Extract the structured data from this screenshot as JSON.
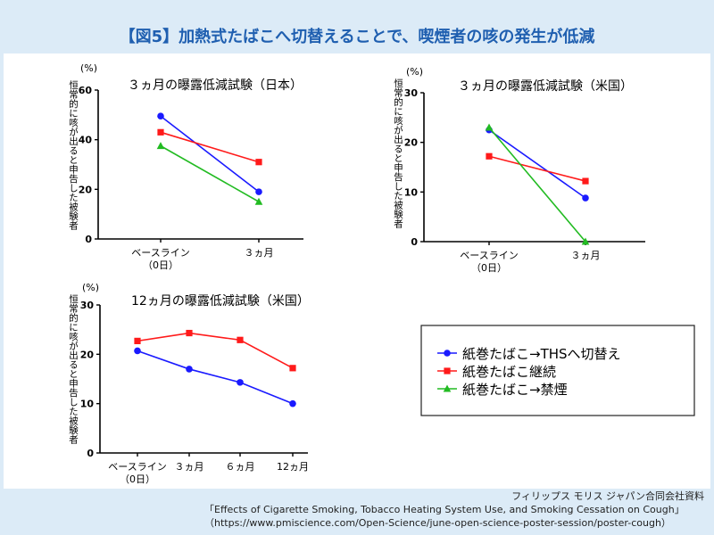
{
  "title": "【図5】加熱式たばこへ切替えることで、喫煙者の咳の発生が低減",
  "legend": [
    {
      "label": "紙巻たばこ→THSへ切替え",
      "color": "#1a1aff",
      "marker": "circle"
    },
    {
      "label": "紙巻たばこ継続",
      "color": "#ff1a1a",
      "marker": "square"
    },
    {
      "label": "紙巻たばこ→禁煙",
      "color": "#22bb22",
      "marker": "triangle"
    }
  ],
  "footer": {
    "line1": "フィリップス モリス ジャパン合同会社資料",
    "line2": "「Effects of Cigarette Smoking, Tobacco Heating System Use, and Smoking Cessation on Cough」",
    "line3": "（https://www.pmiscience.com/Open-Science/june-open-science-poster-session/poster-cough）"
  },
  "chart_data": [
    {
      "type": "line",
      "title": "３ヵ月の曝露低減試験（日本）",
      "ylabel": "恒常的に咳が出ると申告した被験者",
      "yunit": "(%)",
      "ylim": [
        0,
        60
      ],
      "yticks": [
        "0",
        "20",
        "40",
        "60"
      ],
      "categories": [
        "ベースライン\n（0日）",
        "３ヵ月"
      ],
      "series": [
        {
          "name": "紙巻たばこ→THSへ切替え",
          "values": [
            49.5,
            19
          ]
        },
        {
          "name": "紙巻たばこ継続",
          "values": [
            43,
            31
          ]
        },
        {
          "name": "紙巻たばこ→禁煙",
          "values": [
            37.5,
            15
          ]
        }
      ]
    },
    {
      "type": "line",
      "title": "３ヵ月の曝露低減試験（米国）",
      "ylabel": "恒常的に咳が出ると申告した被験者",
      "yunit": "(%)",
      "ylim": [
        0,
        30
      ],
      "yticks": [
        "0",
        "10",
        "20",
        "30"
      ],
      "categories": [
        "ベースライン\n（0日）",
        "３ヵ月"
      ],
      "series": [
        {
          "name": "紙巻たばこ→THSへ切替え",
          "values": [
            22.5,
            8.8
          ]
        },
        {
          "name": "紙巻たばこ継続",
          "values": [
            17.2,
            12.2
          ]
        },
        {
          "name": "紙巻たばこ→禁煙",
          "values": [
            23,
            0
          ]
        }
      ]
    },
    {
      "type": "line",
      "title": "12ヵ月の曝露低減試験（米国）",
      "ylabel": "恒常的に咳が出ると申告した被験者",
      "yunit": "(%)",
      "ylim": [
        0,
        30
      ],
      "yticks": [
        "0",
        "10",
        "20",
        "30"
      ],
      "categories": [
        "ベースライン\n（0日）",
        "３ヵ月",
        "６ヵ月",
        "12ヵ月"
      ],
      "series": [
        {
          "name": "紙巻たばこ→THSへ切替え",
          "values": [
            20.7,
            17,
            14.3,
            10
          ]
        },
        {
          "name": "紙巻たばこ継続",
          "values": [
            22.7,
            24.3,
            22.9,
            17.2
          ]
        }
      ]
    }
  ]
}
